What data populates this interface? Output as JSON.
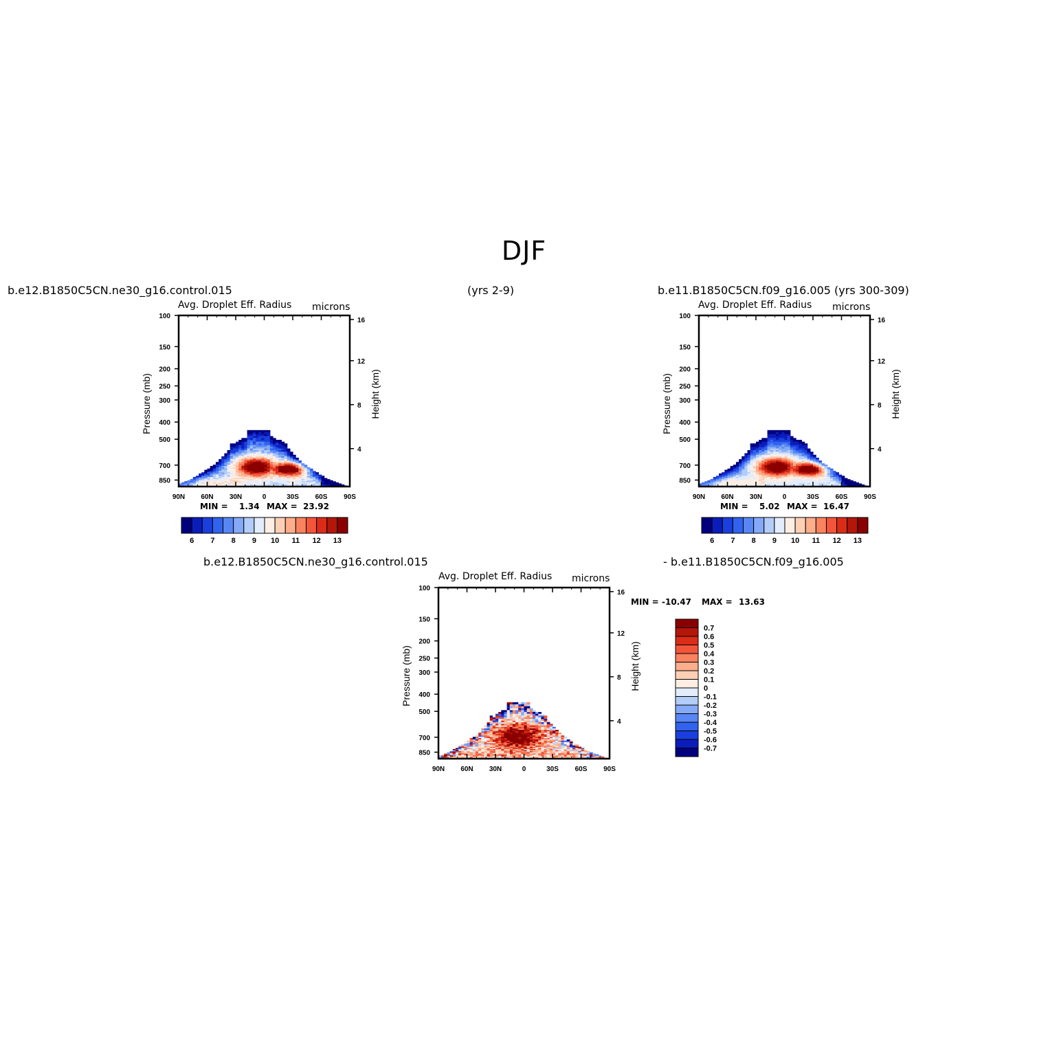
{
  "figure": {
    "title": "DJF",
    "case1_label": "b.e12.B1850C5CN.ne30_g16.control.015",
    "case1_years": "(yrs 2-9)",
    "case2_label": "b.e11.B1850C5CN.f09_g16.005 (yrs 300-309)",
    "diff_label_left": "b.e12.B1850C5CN.ne30_g16.control.015",
    "diff_label_right": "- b.e11.B1850C5CN.f09_g16.005"
  },
  "colors": {
    "scale": [
      "#00007f",
      "#0a1dbb",
      "#1a3fde",
      "#3163ee",
      "#5886f4",
      "#84a9f7",
      "#b3ccf8",
      "#e2ecfb",
      "#fdeee4",
      "#fdd0b6",
      "#fcad8a",
      "#f9825f",
      "#f2553a",
      "#db2c17",
      "#b41609",
      "#8a0000"
    ]
  },
  "chart_data": [
    {
      "id": "panel1",
      "type": "heatmap",
      "title": "Avg. Droplet Eff. Radius",
      "units": "microns",
      "ylabel": "Pressure (mb)",
      "y2label": "Height (km)",
      "xticks": [
        "90N",
        "60N",
        "30N",
        "0",
        "30S",
        "60S",
        "90S"
      ],
      "yticks": [
        100,
        150,
        200,
        250,
        300,
        400,
        500,
        700,
        850
      ],
      "y2ticks": [
        16,
        12,
        8,
        4
      ],
      "min_label": "MIN =",
      "min_value": "1.34",
      "max_label": "MAX =",
      "max_value": "23.92",
      "colorbar": {
        "orientation": "horizontal",
        "labels": [
          "6",
          "7",
          "8",
          "9",
          "10",
          "11",
          "12",
          "13"
        ]
      },
      "field": {
        "kind": "absolute",
        "variant": 0
      }
    },
    {
      "id": "panel2",
      "type": "heatmap",
      "title": "Avg. Droplet Eff. Radius",
      "units": "microns",
      "ylabel": "Pressure (mb)",
      "y2label": "Height (km)",
      "xticks": [
        "90N",
        "60N",
        "30N",
        "0",
        "30S",
        "60S",
        "90S"
      ],
      "yticks": [
        100,
        150,
        200,
        250,
        300,
        400,
        500,
        700,
        850
      ],
      "y2ticks": [
        16,
        12,
        8,
        4
      ],
      "min_label": "MIN =",
      "min_value": "5.02",
      "max_label": "MAX =",
      "max_value": "16.47",
      "colorbar": {
        "orientation": "horizontal",
        "labels": [
          "6",
          "7",
          "8",
          "9",
          "10",
          "11",
          "12",
          "13"
        ]
      },
      "field": {
        "kind": "absolute",
        "variant": 1
      }
    },
    {
      "id": "panel3",
      "type": "heatmap",
      "title": "Avg. Droplet Eff. Radius",
      "units": "microns",
      "ylabel": "Pressure (mb)",
      "y2label": "Height (km)",
      "xticks": [
        "90N",
        "60N",
        "30N",
        "0",
        "30S",
        "60S",
        "90S"
      ],
      "yticks": [
        100,
        150,
        200,
        250,
        300,
        400,
        500,
        700,
        850
      ],
      "y2ticks": [
        16,
        12,
        8,
        4
      ],
      "min_label": "MIN =",
      "min_value": "-10.47",
      "max_label": "MAX =",
      "max_value": "13.63",
      "colorbar": {
        "orientation": "vertical",
        "labels": [
          "0.7",
          "0.6",
          "0.5",
          "0.4",
          "0.3",
          "0.2",
          "0.1",
          "0",
          "-0.1",
          "-0.2",
          "-0.3",
          "-0.4",
          "-0.5",
          "-0.6",
          "-0.7"
        ]
      },
      "field": {
        "kind": "difference",
        "variant": 2
      }
    }
  ]
}
